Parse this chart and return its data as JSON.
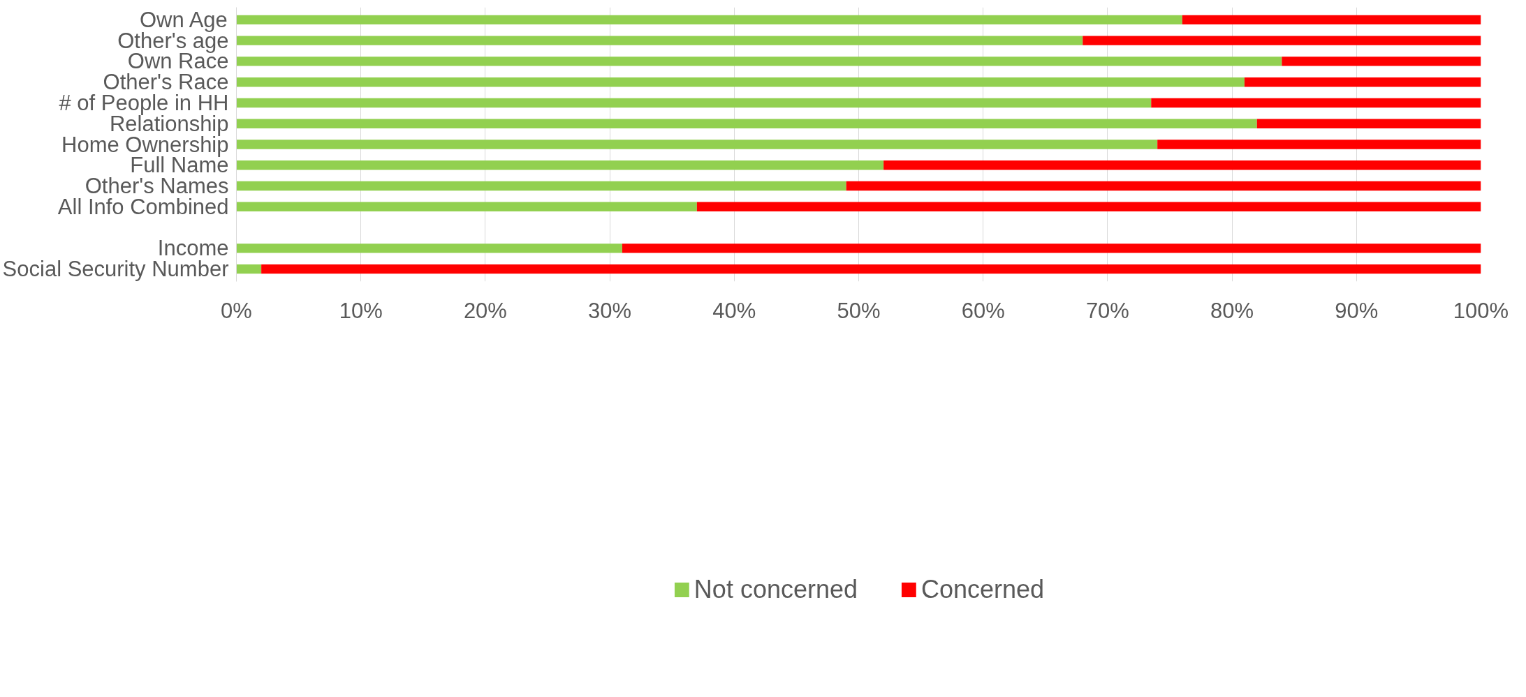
{
  "chart_data": {
    "type": "bar",
    "orientation": "horizontal",
    "stacked": true,
    "categories": [
      "Own Age",
      "Other's age",
      "Own Race",
      "Other's Race",
      "# of People in HH",
      "Relationship",
      "Home Ownership",
      "Full Name",
      "Other's Names",
      "All Info Combined",
      null,
      "Income",
      "Social Security Number"
    ],
    "series": [
      {
        "name": "Not concerned",
        "color": "#92d050",
        "values": [
          76,
          68,
          84,
          81,
          73.5,
          82,
          74,
          52,
          49,
          37,
          null,
          31,
          2
        ]
      },
      {
        "name": "Concerned",
        "color": "#ff0000",
        "values": [
          24,
          32,
          16,
          19,
          26.5,
          18,
          26,
          48,
          51,
          63,
          null,
          69,
          98
        ]
      }
    ],
    "xlim": [
      0,
      100
    ],
    "xticks": [
      {
        "value": 0,
        "label": "0%"
      },
      {
        "value": 10,
        "label": "10%"
      },
      {
        "value": 20,
        "label": "20%"
      },
      {
        "value": 30,
        "label": "30%"
      },
      {
        "value": 40,
        "label": "40%"
      },
      {
        "value": 50,
        "label": "50%"
      },
      {
        "value": 60,
        "label": "60%"
      },
      {
        "value": 70,
        "label": "70%"
      },
      {
        "value": 80,
        "label": "80%"
      },
      {
        "value": 90,
        "label": "90%"
      },
      {
        "value": 100,
        "label": "100%"
      }
    ],
    "grid": "x",
    "legend": "bottom"
  }
}
